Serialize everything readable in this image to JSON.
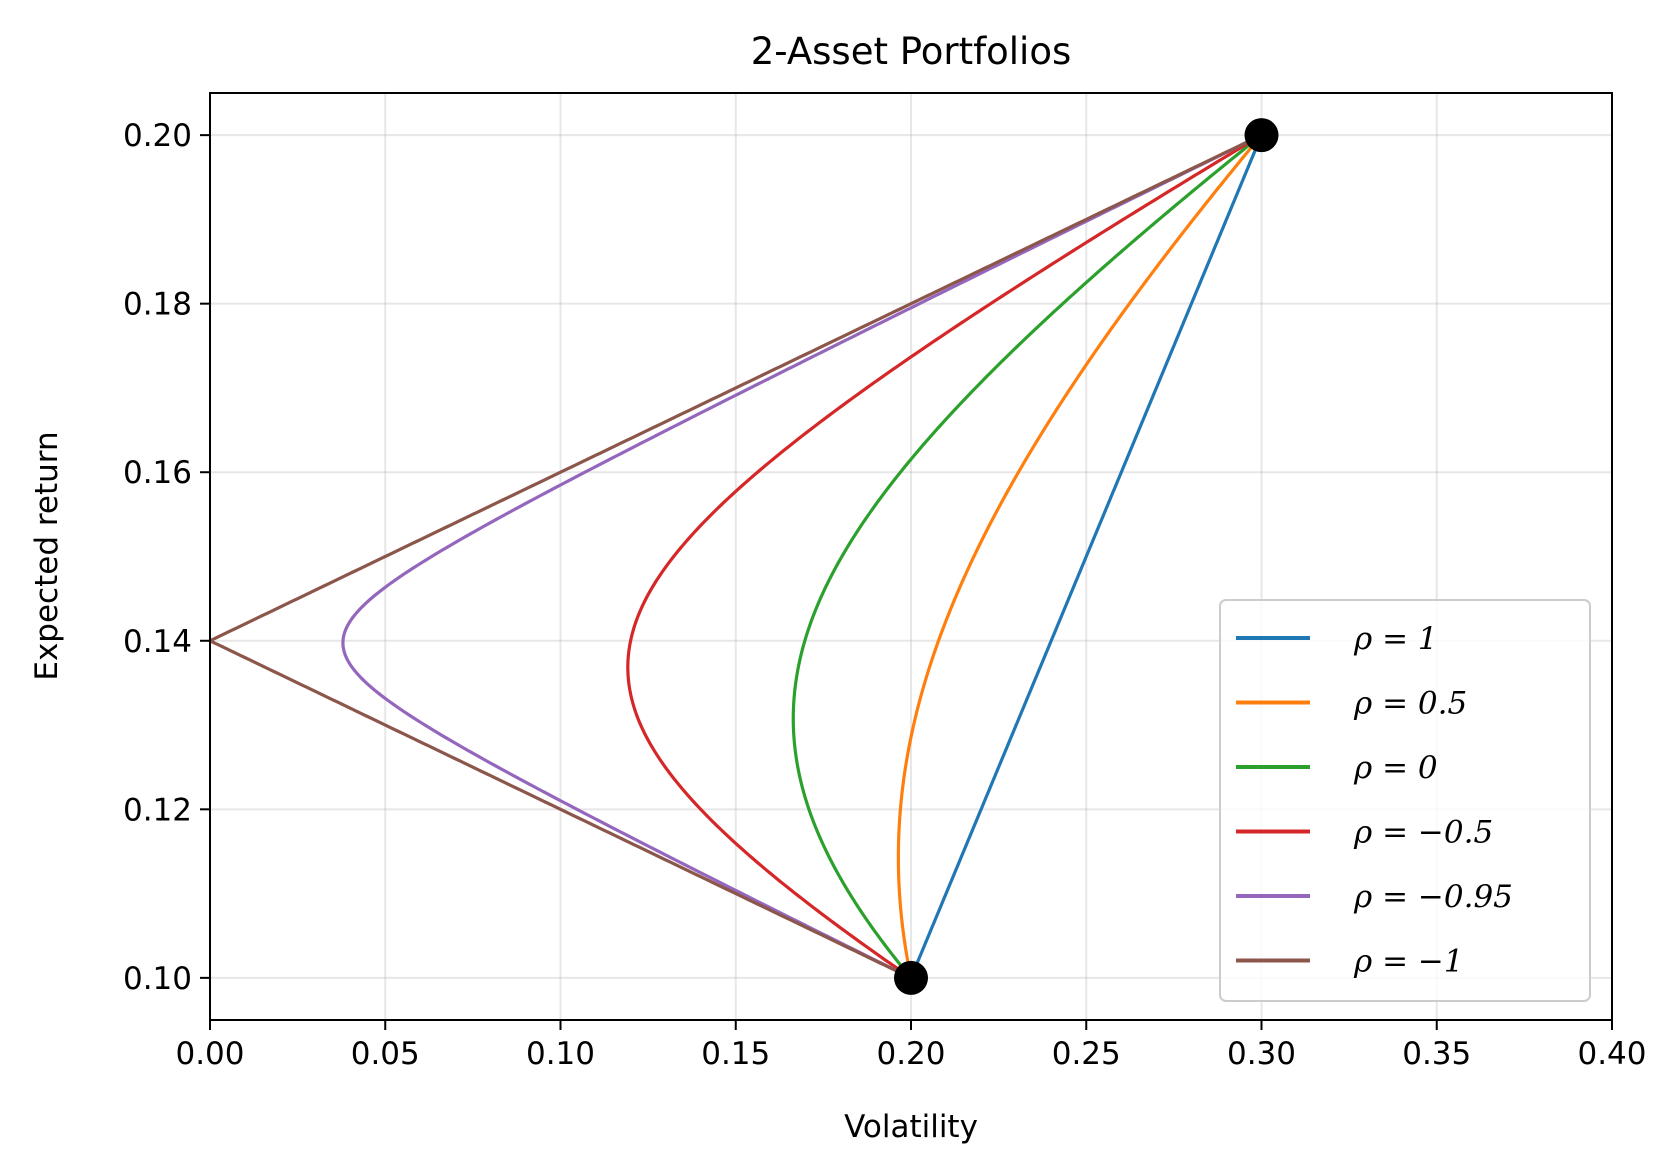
{
  "chart_data": {
    "type": "line",
    "title": "2-Asset Portfolios",
    "xlabel": "Volatility",
    "ylabel": "Expected return",
    "xlim": [
      0.0,
      0.4
    ],
    "ylim": [
      0.095,
      0.205
    ],
    "xticks": [
      "0.00",
      "0.05",
      "0.10",
      "0.15",
      "0.20",
      "0.25",
      "0.30",
      "0.35",
      "0.40"
    ],
    "yticks": [
      "0.10",
      "0.12",
      "0.14",
      "0.16",
      "0.18",
      "0.20"
    ],
    "grid": true,
    "legend_position": "lower right",
    "assets": [
      {
        "volatility": 0.2,
        "expected_return": 0.1
      },
      {
        "volatility": 0.3,
        "expected_return": 0.2
      }
    ],
    "asset_marker_color": "#000000",
    "series": [
      {
        "name": "ρ = 1",
        "rho": 1,
        "color": "#1f77b4"
      },
      {
        "name": "ρ = 0.5",
        "rho": 0.5,
        "color": "#ff7f0e"
      },
      {
        "name": "ρ = 0",
        "rho": 0,
        "color": "#2ca02c"
      },
      {
        "name": "ρ = −0.5",
        "rho": -0.5,
        "color": "#d62728"
      },
      {
        "name": "ρ = −0.95",
        "rho": -0.95,
        "color": "#9467bd"
      },
      {
        "name": "ρ = −1",
        "rho": -1,
        "color": "#8c564b"
      }
    ]
  }
}
